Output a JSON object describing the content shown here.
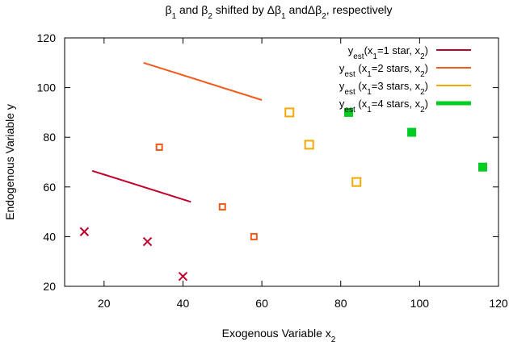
{
  "chart_data": {
    "type": "scatter",
    "title": {
      "parts": [
        {
          "t": "β"
        },
        {
          "t": "1",
          "sub": true
        },
        {
          "t": " and β"
        },
        {
          "t": "2",
          "sub": true
        },
        {
          "t": " shifted by Δβ"
        },
        {
          "t": "1",
          "sub": true
        },
        {
          "t": " andΔβ"
        },
        {
          "t": "2",
          "sub": true
        },
        {
          "t": ", respectively"
        }
      ]
    },
    "xlabel": {
      "parts": [
        {
          "t": "Exogenous Variable x"
        },
        {
          "t": "2",
          "sub": true
        }
      ]
    },
    "ylabel": "Endogenous Variable y",
    "xlim": [
      10,
      120
    ],
    "ylim": [
      20,
      120
    ],
    "xticks": [
      20,
      40,
      60,
      80,
      100,
      120
    ],
    "yticks": [
      20,
      40,
      60,
      80,
      100,
      120
    ],
    "grid": false,
    "legend_position": "top-right",
    "series": [
      {
        "name": {
          "parts": [
            {
              "t": "y"
            },
            {
              "t": "est",
              "sub": true
            },
            {
              "t": "(x"
            },
            {
              "t": "1",
              "sub": true
            },
            {
              "t": "=1 star, x"
            },
            {
              "t": "2",
              "sub": true
            },
            {
              "t": ")"
            }
          ]
        },
        "color": "#c0002a",
        "marker": "x",
        "points": [
          [
            15,
            42
          ],
          [
            31,
            38
          ],
          [
            40,
            24
          ]
        ],
        "line": [
          [
            17,
            66.5
          ],
          [
            42,
            54
          ]
        ]
      },
      {
        "name": {
          "parts": [
            {
              "t": "y"
            },
            {
              "t": "est",
              "sub": true
            },
            {
              "t": " (x"
            },
            {
              "t": "1",
              "sub": true
            },
            {
              "t": "=2 stars, x"
            },
            {
              "t": "2",
              "sub": true
            },
            {
              "t": ")"
            }
          ]
        },
        "color": "#f05a1a",
        "marker": "square-small",
        "points": [
          [
            34,
            76
          ],
          [
            50,
            52
          ],
          [
            58,
            40
          ]
        ],
        "line": [
          [
            30,
            110
          ],
          [
            60,
            95
          ]
        ]
      },
      {
        "name": {
          "parts": [
            {
              "t": "y"
            },
            {
              "t": "est",
              "sub": true
            },
            {
              "t": " (x"
            },
            {
              "t": "1",
              "sub": true
            },
            {
              "t": "=3 stars, x"
            },
            {
              "t": "2",
              "sub": true
            },
            {
              "t": ")"
            }
          ]
        },
        "color": "#f5a800",
        "marker": "square",
        "points": [
          [
            67,
            90
          ],
          [
            72,
            77
          ],
          [
            84,
            62
          ]
        ],
        "line": null
      },
      {
        "name": {
          "parts": [
            {
              "t": "y"
            },
            {
              "t": "est",
              "sub": true
            },
            {
              "t": " (x"
            },
            {
              "t": "1",
              "sub": true
            },
            {
              "t": "=4 stars, x"
            },
            {
              "t": "2",
              "sub": true
            },
            {
              "t": ")"
            }
          ]
        },
        "color": "#00cc22",
        "marker": "square-filled",
        "points": [
          [
            82,
            90
          ],
          [
            98,
            82
          ],
          [
            116,
            68
          ]
        ],
        "line": null
      }
    ]
  }
}
